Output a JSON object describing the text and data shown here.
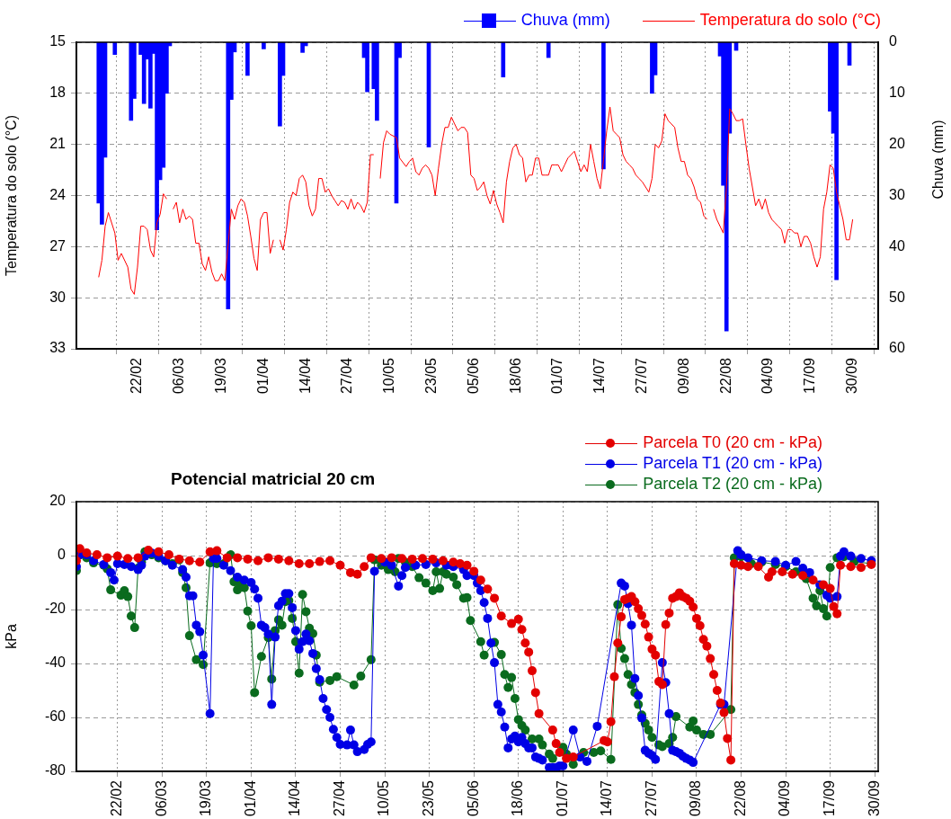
{
  "chart_data": [
    {
      "type": "line",
      "ylabel": "Temperatura do solo (°C)",
      "y2label": "Chuva (mm)",
      "xlim": [
        "--02-10",
        "--10-01"
      ],
      "xticks": [
        {
          "value": "--02-22",
          "label": "22/02"
        },
        {
          "value": "--03-06",
          "label": "06/03"
        },
        {
          "value": "--03-19",
          "label": "19/03"
        },
        {
          "value": "--04-01",
          "label": "01/04"
        },
        {
          "value": "--04-14",
          "label": "14/04"
        },
        {
          "value": "--04-27",
          "label": "27/04"
        },
        {
          "value": "--05-10",
          "label": "10/05"
        },
        {
          "value": "--05-23",
          "label": "23/05"
        },
        {
          "value": "--06-05",
          "label": "05/06"
        },
        {
          "value": "--06-18",
          "label": "18/06"
        },
        {
          "value": "--07-01",
          "label": "01/07"
        },
        {
          "value": "--07-14",
          "label": "14/07"
        },
        {
          "value": "--07-27",
          "label": "27/07"
        },
        {
          "value": "--08-09",
          "label": "09/08"
        },
        {
          "value": "--08-22",
          "label": "22/08"
        },
        {
          "value": "--09-04",
          "label": "04/09"
        },
        {
          "value": "--09-17",
          "label": "17/09"
        },
        {
          "value": "--09-30",
          "label": "30/09"
        }
      ],
      "ylim": [
        33,
        15
      ],
      "yticks": [
        15,
        18,
        21,
        24,
        27,
        30,
        33
      ],
      "y2lim": [
        60,
        0
      ],
      "y2ticks": [
        0,
        10,
        20,
        30,
        40,
        50,
        60
      ],
      "grid": true,
      "legend": "top right",
      "marker": "none",
      "series": [
        {
          "name": "Chuva (mm)",
          "type": "bar",
          "axis": "y2",
          "color": "#0000ff",
          "x": [
            "--02-10",
            "--02-11",
            "--02-12",
            "--02-15",
            "--02-20",
            "--02-21",
            "--02-23",
            "--02-24",
            "--02-25",
            "--02-26",
            "--02-27",
            "--02-28",
            "--02-29",
            "--03-01",
            "--03-02",
            "--03-03",
            "--03-21",
            "--03-22",
            "--03-23",
            "--03-27",
            "--04-01",
            "--04-06",
            "--04-07",
            "--04-13",
            "--04-14",
            "--05-02",
            "--05-03",
            "--05-05",
            "--05-06",
            "--05-12",
            "--05-13",
            "--05-22",
            "--06-14",
            "--06-28",
            "--07-15",
            "--07-30",
            "--07-31",
            "--08-20",
            "--08-21",
            "--08-22",
            "--08-23",
            "--08-25",
            "--09-23",
            "--09-24",
            "--09-25",
            "--09-29"
          ],
          "values": [
            31.5,
            35.6,
            22.5,
            2.4,
            15.3,
            11,
            2.4,
            12,
            3.3,
            12.9,
            2.2,
            36.7,
            26.9,
            24.5,
            10,
            0.7,
            52.2,
            11.2,
            1.9,
            6.5,
            1.3,
            16.4,
            6.5,
            2,
            0.7,
            3,
            9.7,
            9.1,
            15.3,
            31.5,
            3,
            20.5,
            6.8,
            3,
            24.8,
            10,
            6.4,
            2.7,
            28,
            56.5,
            17.8,
            1.6,
            13.5,
            17.8,
            46.5,
            4.5
          ]
        },
        {
          "name": "Temperatura do solo (°C)",
          "type": "line",
          "axis": "y",
          "color": "#ff0000",
          "x": [
            "--02-10",
            "--02-11",
            "--02-12",
            "--02-13",
            "--02-15",
            "--02-16",
            "--02-17",
            "--02-19",
            "--02-20",
            "--02-21",
            "--02-22",
            "--02-23",
            "--02-24",
            "--02-25",
            "--02-26",
            "--02-27",
            "--02-28",
            "--02-29",
            "--03-01",
            "--03-02",
            "--03-03",
            "--03-04",
            "--03-05",
            "--03-06",
            "--03-07",
            "--03-08",
            "--03-09",
            "--03-10",
            "--03-11",
            "--03-12",
            "--03-13",
            "--03-14",
            "--03-15",
            "--03-16",
            "--03-17",
            "--03-18",
            "--03-19",
            "--03-20",
            "--03-22",
            "--03-23",
            "--03-24",
            "--03-25",
            "--03-26",
            "--03-27",
            "--03-28",
            "--03-29",
            "--03-30",
            "--03-31",
            "--04-01",
            "--04-02",
            "--04-03",
            "--04-04",
            "--04-05",
            "--04-06",
            "--04-07",
            "--04-08",
            "--04-09",
            "--04-10",
            "--04-11",
            "--04-12",
            "--04-13",
            "--04-14",
            "--04-15",
            "--04-16",
            "--04-17",
            "--04-18",
            "--04-19",
            "--04-20",
            "--04-21",
            "--04-22",
            "--04-23",
            "--04-24",
            "--04-25",
            "--04-26",
            "--04-27",
            "--04-28",
            "--04-29",
            "--04-30",
            "--05-01",
            "--05-02",
            "--05-03",
            "--05-04",
            "--05-05",
            "--05-06",
            "--05-07",
            "--05-08",
            "--05-09",
            "--05-10",
            "--05-12",
            "--05-13",
            "--05-15",
            "--05-16",
            "--05-17",
            "--05-18",
            "--05-19",
            "--05-20",
            "--05-21",
            "--05-22",
            "--05-23",
            "--05-24",
            "--05-25",
            "--05-26",
            "--05-27",
            "--05-28",
            "--05-29",
            "--05-30",
            "--05-31",
            "--06-01",
            "--06-02",
            "--06-03",
            "--06-04",
            "--06-05",
            "--06-06",
            "--06-07",
            "--06-08",
            "--06-09",
            "--06-10",
            "--06-11",
            "--06-12",
            "--06-13",
            "--06-14",
            "--06-15",
            "--06-16",
            "--06-17",
            "--06-18",
            "--06-19",
            "--06-20",
            "--06-21",
            "--06-22",
            "--06-23",
            "--06-24",
            "--06-25",
            "--06-26",
            "--06-27",
            "--06-28",
            "--06-29",
            "--06-30",
            "--07-01",
            "--07-02",
            "--07-03",
            "--07-04",
            "--07-05",
            "--07-06",
            "--07-07",
            "--07-08",
            "--07-09",
            "--07-10",
            "--07-11",
            "--07-12",
            "--07-13",
            "--07-14",
            "--07-15",
            "--07-16",
            "--07-17",
            "--07-18",
            "--07-19",
            "--07-20",
            "--07-21",
            "--07-22",
            "--07-23",
            "--07-24",
            "--07-25",
            "--07-26",
            "--07-27",
            "--07-28",
            "--07-29",
            "--07-30",
            "--07-31",
            "--08-01",
            "--08-02",
            "--08-03",
            "--08-04",
            "--08-05",
            "--08-06",
            "--08-07",
            "--08-08",
            "--08-09",
            "--08-10",
            "--08-11",
            "--08-12",
            "--08-13",
            "--08-14",
            "--08-15",
            "--08-16",
            "--08-17",
            "--08-18",
            "--08-19",
            "--08-21",
            "--08-22",
            "--08-23",
            "--08-24",
            "--08-25",
            "--08-26",
            "--08-27",
            "--08-28",
            "--08-29",
            "--08-30",
            "--08-31",
            "--09-01",
            "--09-02",
            "--09-03",
            "--09-04",
            "--09-05",
            "--09-06",
            "--09-07",
            "--09-08",
            "--09-09",
            "--09-10",
            "--09-11",
            "--09-12",
            "--09-13",
            "--09-14",
            "--09-15",
            "--09-16",
            "--09-17",
            "--09-18",
            "--09-19",
            "--09-20",
            "--09-21",
            "--09-22",
            "--09-23",
            "--09-24",
            "--09-25",
            "--09-26",
            "--09-27",
            "--09-28",
            "--09-29",
            "--09-30"
          ],
          "values": [
            28.8,
            27.8,
            25.8,
            25,
            26.2,
            27.8,
            27.4,
            28.2,
            29.5,
            29.8,
            28.2,
            25.8,
            25.8,
            26,
            27.2,
            27.6,
            25.6,
            25.1,
            23.9,
            24.2,
            null,
            24.8,
            24.4,
            25.6,
            24.8,
            25.4,
            25.2,
            25.4,
            26.8,
            26.8,
            28,
            28.4,
            27.6,
            28.5,
            29,
            29,
            28.6,
            29,
            24.8,
            25.4,
            24.6,
            24.2,
            24.4,
            25.2,
            26.4,
            27.7,
            28.4,
            25.4,
            25,
            25,
            27.4,
            26.6,
            null,
            26.6,
            27.2,
            26,
            24.4,
            23.8,
            24,
            23,
            22.8,
            23.2,
            24.6,
            25.2,
            24.8,
            23,
            23,
            23.8,
            23.6,
            24,
            24.3,
            24.6,
            24.3,
            24.4,
            24.8,
            24.2,
            24.8,
            24.4,
            24.6,
            25,
            24.4,
            21.6,
            21.6,
            null,
            23,
            20.9,
            20.2,
            20.4,
            20.6,
            21.8,
            22.3,
            22,
            21.8,
            22.6,
            22.8,
            22.4,
            22.2,
            22.4,
            22.8,
            24,
            22.4,
            21,
            20,
            20,
            19.4,
            19.8,
            20.2,
            20,
            20,
            20.3,
            22.8,
            23,
            23.7,
            23.5,
            23.2,
            24,
            24.5,
            23.7,
            24.5,
            25,
            25.6,
            23.2,
            22,
            21.2,
            21,
            21.6,
            21.8,
            23.2,
            22.8,
            22.8,
            21.8,
            21.8,
            22.8,
            22.8,
            22.8,
            22.2,
            22.2,
            22.2,
            22.6,
            22.2,
            21.8,
            21.6,
            21.4,
            22,
            22.6,
            22.2,
            22.6,
            21,
            22,
            23,
            23.6,
            21.9,
            20.2,
            18.8,
            20.2,
            20.4,
            20.6,
            21.6,
            22,
            22.2,
            22.4,
            22.8,
            23,
            23.2,
            23.5,
            23.8,
            23,
            21,
            21.2,
            20.8,
            19.2,
            19.6,
            19.8,
            20,
            21.2,
            22,
            22,
            22.8,
            23,
            23.5,
            24.2,
            24.4,
            25.2,
            25.4,
            null,
            24.8,
            25.4,
            26.2,
            23.5,
            18.9,
            19.2,
            19.6,
            19.6,
            19.5,
            21,
            22.4,
            23.5,
            24.6,
            24.2,
            24.8,
            24.2,
            25,
            25.4,
            25.6,
            25.8,
            26,
            26.8,
            26,
            26,
            26.2,
            26.2,
            27,
            26.4,
            26.4,
            26.8,
            27.6,
            28.2,
            27.6,
            24.8,
            23.8,
            22.2,
            22.4,
            23.8,
            24.6,
            25.4,
            26.6,
            26.6,
            25.4
          ]
        }
      ]
    },
    {
      "type": "line",
      "title": "Potencial matricial 20 cm",
      "ylabel": "kPa",
      "xlim": [
        "--02-10",
        "--10-01"
      ],
      "xticks": [
        {
          "value": "--02-22",
          "label": "22/02"
        },
        {
          "value": "--03-06",
          "label": "06/03"
        },
        {
          "value": "--03-19",
          "label": "19/03"
        },
        {
          "value": "--04-01",
          "label": "01/04"
        },
        {
          "value": "--04-14",
          "label": "14/04"
        },
        {
          "value": "--04-27",
          "label": "27/04"
        },
        {
          "value": "--05-10",
          "label": "10/05"
        },
        {
          "value": "--05-23",
          "label": "23/05"
        },
        {
          "value": "--06-05",
          "label": "05/06"
        },
        {
          "value": "--06-18",
          "label": "18/06"
        },
        {
          "value": "--07-01",
          "label": "01/07"
        },
        {
          "value": "--07-14",
          "label": "14/07"
        },
        {
          "value": "--07-27",
          "label": "27/07"
        },
        {
          "value": "--08-09",
          "label": "09/08"
        },
        {
          "value": "--08-22",
          "label": "22/08"
        },
        {
          "value": "--09-04",
          "label": "04/09"
        },
        {
          "value": "--09-17",
          "label": "17/09"
        },
        {
          "value": "--09-30",
          "label": "30/09"
        }
      ],
      "ylim": [
        -80,
        20
      ],
      "yticks": [
        -80,
        -60,
        -40,
        -20,
        0,
        20
      ],
      "grid": true,
      "legend": "top right",
      "marker": "circle",
      "series": [
        {
          "name": "Parcela T0 (20 cm - kPa)",
          "color": "#e30000",
          "x": [
            "--02-10",
            "--02-11",
            "--02-13",
            "--02-16",
            "--02-19",
            "--02-22",
            "--02-25",
            "--02-28",
            "--03-02",
            "--03-05",
            "--03-08",
            "--03-11",
            "--03-14",
            "--03-17",
            "--03-20",
            "--03-22",
            "--03-25",
            "--03-28",
            "--03-31",
            "--04-03",
            "--04-06",
            "--04-09",
            "--04-12",
            "--04-15",
            "--04-18",
            "--04-21",
            "--04-24",
            "--04-27",
            "--04-30",
            "--05-02",
            "--05-04",
            "--05-06",
            "--05-09",
            "--05-12",
            "--05-15",
            "--05-18",
            "--05-21",
            "--05-24",
            "--05-27",
            "--05-30",
            "--06-01",
            "--06-03",
            "--06-05",
            "--06-07",
            "--06-09",
            "--06-11",
            "--06-13",
            "--06-16",
            "--06-18",
            "--06-19",
            "--06-20",
            "--06-21",
            "--06-22",
            "--06-23",
            "--06-24",
            "--06-28",
            "--06-29",
            "--06-30",
            "--07-02",
            "--07-04",
            "--07-13",
            "--07-14",
            "--07-15",
            "--07-16",
            "--07-17",
            "--07-18",
            "--07-19",
            "--07-20",
            "--07-21",
            "--07-22",
            "--07-23",
            "--07-24",
            "--07-25",
            "--07-26",
            "--07-27",
            "--07-28",
            "--07-29",
            "--07-30",
            "--07-31",
            "--08-01",
            "--08-02",
            "--08-03",
            "--08-04",
            "--08-05",
            "--08-06",
            "--08-07",
            "--08-08",
            "--08-09",
            "--08-10",
            "--08-11",
            "--08-12",
            "--08-13",
            "--08-14",
            "--08-15",
            "--08-16",
            "--08-17",
            "--08-18",
            "--08-19",
            "--08-20",
            "--08-22",
            "--08-24",
            "--08-27",
            "--08-30",
            "--08-31",
            "--09-03",
            "--09-06",
            "--09-09",
            "--09-12",
            "--09-15",
            "--09-17",
            "--09-18",
            "--09-19",
            "--09-20",
            "--09-23",
            "--09-26",
            "--09-29"
          ],
          "values": [
            -1.9,
            2.6,
            1,
            0.3,
            -0.8,
            -0.2,
            -1.1,
            -0.8,
            2,
            1.4,
            0.3,
            -1.3,
            -1.9,
            -2.4,
            1.4,
            1.8,
            -0.8,
            -0.8,
            -1.3,
            -1.9,
            -0.8,
            -1.3,
            -1.9,
            -3,
            -3,
            -2.2,
            -1.9,
            -3.6,
            -6.3,
            -6.9,
            -4.1,
            -0.8,
            -1.1,
            -0.8,
            -1.1,
            -1.3,
            -1.1,
            -1.3,
            -1.9,
            -2.4,
            -3,
            -3.6,
            -5.8,
            -9.1,
            -12.4,
            -15.8,
            -22.4,
            -25.2,
            -23.6,
            -27.4,
            -32.4,
            -35.8,
            -42.7,
            -50.8,
            -58.6,
            -64.7,
            -69.7,
            -73,
            -75.2,
            -74.7,
            -68.6,
            -69.1,
            -61.6,
            -44.9,
            -32.4,
            -22.7,
            -16.3,
            -15.8,
            -15.2,
            -17.1,
            -19.7,
            -22.2,
            -25.4,
            -30.2,
            -34.7,
            -36.9,
            -46.7,
            -47.8,
            -25.6,
            -21.3,
            -15.8,
            -15.2,
            -13.8,
            -15.2,
            -15.8,
            -16.9,
            -19.1,
            -23.3,
            -26,
            -31.1,
            -33.6,
            -38.2,
            -44.1,
            -50,
            -54.7,
            -58.2,
            -67.8,
            -75.8,
            -3,
            -3.6,
            -4.1,
            -4.1,
            -8,
            -6,
            -6,
            -6.9,
            -7.4,
            -9.1,
            -10.8,
            -12.2,
            -18.9,
            -21.6,
            -3.6,
            -4.1,
            -4.4,
            -3.3
          ]
        },
        {
          "name": "Parcela T1 (20 cm - kPa)",
          "color": "#0000e6",
          "x": [
            "--02-10",
            "--02-11",
            "--02-13",
            "--02-15",
            "--02-18",
            "--02-20",
            "--02-21",
            "--02-22",
            "--02-24",
            "--02-26",
            "--02-28",
            "--02-29",
            "--03-01",
            "--03-03",
            "--03-05",
            "--03-07",
            "--03-09",
            "--03-12",
            "--03-13",
            "--03-14",
            "--03-15",
            "--03-16",
            "--03-17",
            "--03-18",
            "--03-20",
            "--03-21",
            "--03-22",
            "--03-24",
            "--03-26",
            "--03-28",
            "--03-30",
            "--04-01",
            "--04-02",
            "--04-03",
            "--04-04",
            "--04-05",
            "--04-06",
            "--04-07",
            "--04-08",
            "--04-09",
            "--04-10",
            "--04-11",
            "--04-12",
            "--04-13",
            "--04-14",
            "--04-15",
            "--04-16",
            "--04-17",
            "--04-18",
            "--04-19",
            "--04-20",
            "--04-21",
            "--04-22",
            "--04-23",
            "--04-24",
            "--04-25",
            "--04-26",
            "--04-27",
            "--04-29",
            "--04-30",
            "--05-01",
            "--05-02",
            "--05-04",
            "--05-05",
            "--05-06",
            "--05-07",
            "--05-10",
            "--05-12",
            "--05-14",
            "--05-15",
            "--05-16",
            "--05-19",
            "--05-22",
            "--05-25",
            "--05-28",
            "--05-30",
            "--06-02",
            "--06-03",
            "--06-05",
            "--06-06",
            "--06-07",
            "--06-08",
            "--06-09",
            "--06-10",
            "--06-11",
            "--06-12",
            "--06-13",
            "--06-14",
            "--06-15",
            "--06-16",
            "--06-17",
            "--06-18",
            "--06-19",
            "--06-20",
            "--06-21",
            "--06-22",
            "--06-23",
            "--06-24",
            "--06-25",
            "--06-27",
            "--06-28",
            "--06-29",
            "--06-30",
            "--07-01",
            "--07-04",
            "--07-06",
            "--07-08",
            "--07-11",
            "--07-18",
            "--07-19",
            "--07-20",
            "--07-21",
            "--07-22",
            "--07-23",
            "--07-24",
            "--07-25",
            "--07-26",
            "--07-27",
            "--07-28",
            "--07-30",
            "--07-31",
            "--08-01",
            "--08-02",
            "--08-03",
            "--08-04",
            "--08-05",
            "--08-06",
            "--08-07",
            "--08-08",
            "--08-16",
            "--08-17",
            "--08-21",
            "--08-22",
            "--08-24",
            "--08-28",
            "--09-01",
            "--09-04",
            "--09-07",
            "--09-09",
            "--09-11",
            "--09-14",
            "--09-16",
            "--09-17",
            "--09-19",
            "--09-20",
            "--09-21",
            "--09-23",
            "--09-26",
            "--09-29"
          ],
          "values": [
            -4.1,
            0.3,
            0.3,
            -1.9,
            -3.3,
            -6.3,
            -9.1,
            -3,
            -3.3,
            -4.1,
            -5.2,
            -3.6,
            -0.2,
            0.9,
            -0.2,
            -1.9,
            -3.6,
            -5.2,
            -8,
            -14.9,
            -14.9,
            -25.8,
            -28.2,
            -36.9,
            -58.6,
            -1.1,
            -1.1,
            -3.6,
            -5.6,
            -8,
            -9.1,
            -10,
            -12.4,
            -15.8,
            -25.8,
            -26.7,
            -29.1,
            -55.2,
            -30.2,
            -18.6,
            -16.9,
            -14.1,
            -14.1,
            -19.3,
            -27.8,
            -34.7,
            -31.9,
            -29.1,
            -31.6,
            -36.3,
            -41.9,
            -46,
            -53,
            -57.1,
            -60,
            -64.4,
            -67.4,
            -70,
            -70.2,
            -64.7,
            -70.2,
            -72.7,
            -71.9,
            -70,
            -69.1,
            -5.8,
            -2.4,
            -3.6,
            -11.3,
            -7.4,
            -4.4,
            -3.6,
            -3.3,
            -2.7,
            -3.6,
            -4.1,
            -5.2,
            -7.4,
            -7.4,
            -10.2,
            -13,
            -17.4,
            -23.3,
            -32.4,
            -39.7,
            -55.2,
            -58,
            -63.6,
            -71.3,
            -68,
            -66.9,
            -69.1,
            -67.4,
            -69.7,
            -71.3,
            -71.3,
            -74.7,
            -75.2,
            -75.8,
            -78.6,
            -78.6,
            -78.6,
            -78,
            -78,
            -64.7,
            -74.7,
            -76.3,
            -63.3,
            -10.2,
            -11.3,
            -17.8,
            -25.8,
            -45.6,
            -51.9,
            -60.2,
            -72.2,
            -73.3,
            -74.1,
            -75.6,
            -39.7,
            -47.1,
            -58.6,
            -72.2,
            -72.7,
            -73.3,
            -74.4,
            -75.2,
            -75.8,
            -76.7,
            -55.2,
            -55.2,
            1.8,
            0.3,
            -0.8,
            -1.9,
            -2.2,
            -3.6,
            -2.2,
            -4.7,
            -6.3,
            -10.8,
            -14.7,
            -15.8,
            -15.2,
            -0.2,
            1.4,
            -0.2,
            -1.1,
            -1.9
          ]
        },
        {
          "name": "Parcela T2 (20 cm - kPa)",
          "color": "#0a6b1e",
          "x": [
            "--02-10",
            "--02-11",
            "--02-13",
            "--02-15",
            "--02-18",
            "--02-19",
            "--02-20",
            "--02-23",
            "--02-24",
            "--02-25",
            "--02-26",
            "--02-27",
            "--02-28",
            "--02-29",
            "--03-01",
            "--03-03",
            "--03-05",
            "--03-07",
            "--03-09",
            "--03-11",
            "--03-12",
            "--03-13",
            "--03-14",
            "--03-16",
            "--03-18",
            "--03-20",
            "--03-22",
            "--03-24",
            "--03-26",
            "--03-27",
            "--03-28",
            "--03-29",
            "--03-30",
            "--03-31",
            "--04-01",
            "--04-02",
            "--04-04",
            "--04-06",
            "--04-07",
            "--04-08",
            "--04-09",
            "--04-10",
            "--04-11",
            "--04-12",
            "--04-13",
            "--04-14",
            "--04-15",
            "--04-16",
            "--04-17",
            "--04-18",
            "--04-19",
            "--04-20",
            "--04-21",
            "--04-24",
            "--04-26",
            "--05-01",
            "--05-03",
            "--05-06",
            "--05-07",
            "--05-09",
            "--05-11",
            "--05-13",
            "--05-14",
            "--05-16",
            "--05-18",
            "--05-20",
            "--05-22",
            "--05-24",
            "--05-25",
            "--05-26",
            "--05-27",
            "--05-28",
            "--05-30",
            "--05-31",
            "--06-02",
            "--06-03",
            "--06-04",
            "--06-07",
            "--06-08",
            "--06-11",
            "--06-13",
            "--06-14",
            "--06-15",
            "--06-16",
            "--06-17",
            "--06-18",
            "--06-19",
            "--06-20",
            "--06-22",
            "--06-24",
            "--06-25",
            "--06-27",
            "--06-28",
            "--07-01",
            "--07-02",
            "--07-04",
            "--07-07",
            "--07-10",
            "--07-12",
            "--07-15",
            "--07-17",
            "--07-18",
            "--07-19",
            "--07-20",
            "--07-21",
            "--07-22",
            "--07-23",
            "--07-24",
            "--07-25",
            "--07-26",
            "--07-27",
            "--07-29",
            "--07-30",
            "--08-01",
            "--08-02",
            "--08-03",
            "--08-07",
            "--08-08",
            "--08-09",
            "--08-11",
            "--08-13",
            "--08-19",
            "--08-20",
            "--08-22",
            "--08-25",
            "--08-28",
            "--09-01",
            "--09-04",
            "--09-07",
            "--09-10",
            "--09-12",
            "--09-13",
            "--09-14",
            "--09-15",
            "--09-16",
            "--09-17",
            "--09-19",
            "--09-21",
            "--09-24",
            "--09-29"
          ],
          "values": [
            -5.6,
            0.3,
            -0.8,
            -2.7,
            -3.6,
            -4.9,
            -12.7,
            -14.7,
            -13,
            -15.2,
            -22.4,
            -26.7,
            -4.7,
            -2.4,
            1.4,
            0.3,
            -0.8,
            -1.9,
            -3,
            -1.6,
            -6.3,
            -11.9,
            -29.7,
            -38.6,
            -40.4,
            -2.7,
            -3,
            -3,
            0.3,
            -9.7,
            -12.7,
            -10.8,
            -11.9,
            -20.6,
            -26,
            -50.8,
            -37.4,
            -30.4,
            -45.8,
            -27.8,
            -23.8,
            -25.8,
            -17.1,
            -16.7,
            -23.3,
            -31.9,
            -43.6,
            -14.4,
            -20.8,
            -26.9,
            -28.9,
            -36.9,
            -46.9,
            -46.3,
            -44.9,
            -48,
            -44.7,
            -38.6,
            -1.6,
            -3.6,
            -5.2,
            -6,
            -1.1,
            -2.4,
            -4.1,
            -8.2,
            -10.2,
            -13,
            -6,
            -12.2,
            -6,
            -6.9,
            -8,
            -10.8,
            -15.8,
            -15.6,
            -24.1,
            -31.9,
            -36.9,
            -32.2,
            -36.7,
            -44.1,
            -48.9,
            -45.2,
            -53,
            -60.8,
            -63,
            -64.7,
            -68,
            -68,
            -70.2,
            -73.6,
            -75.2,
            -71.1,
            -73.6,
            -77.4,
            -73,
            -73,
            -72.4,
            -75.6,
            -18.2,
            -34.4,
            -38.2,
            -44.1,
            -47.8,
            -50.8,
            -55.2,
            -59.1,
            -62.2,
            -64.7,
            -67.4,
            -70.2,
            -70.8,
            -69.7,
            -67.4,
            -59.7,
            -63.6,
            -61.3,
            -64.7,
            -66.3,
            -66.3,
            -57.1,
            -0.8,
            -0.4,
            -3,
            -2.4,
            -3.3,
            -4.1,
            -6,
            -8.6,
            -15.8,
            -18.6,
            -13,
            -19.7,
            -22.4,
            -4.4,
            -0.8,
            -0.4,
            -2.2,
            -3
          ]
        }
      ]
    }
  ]
}
